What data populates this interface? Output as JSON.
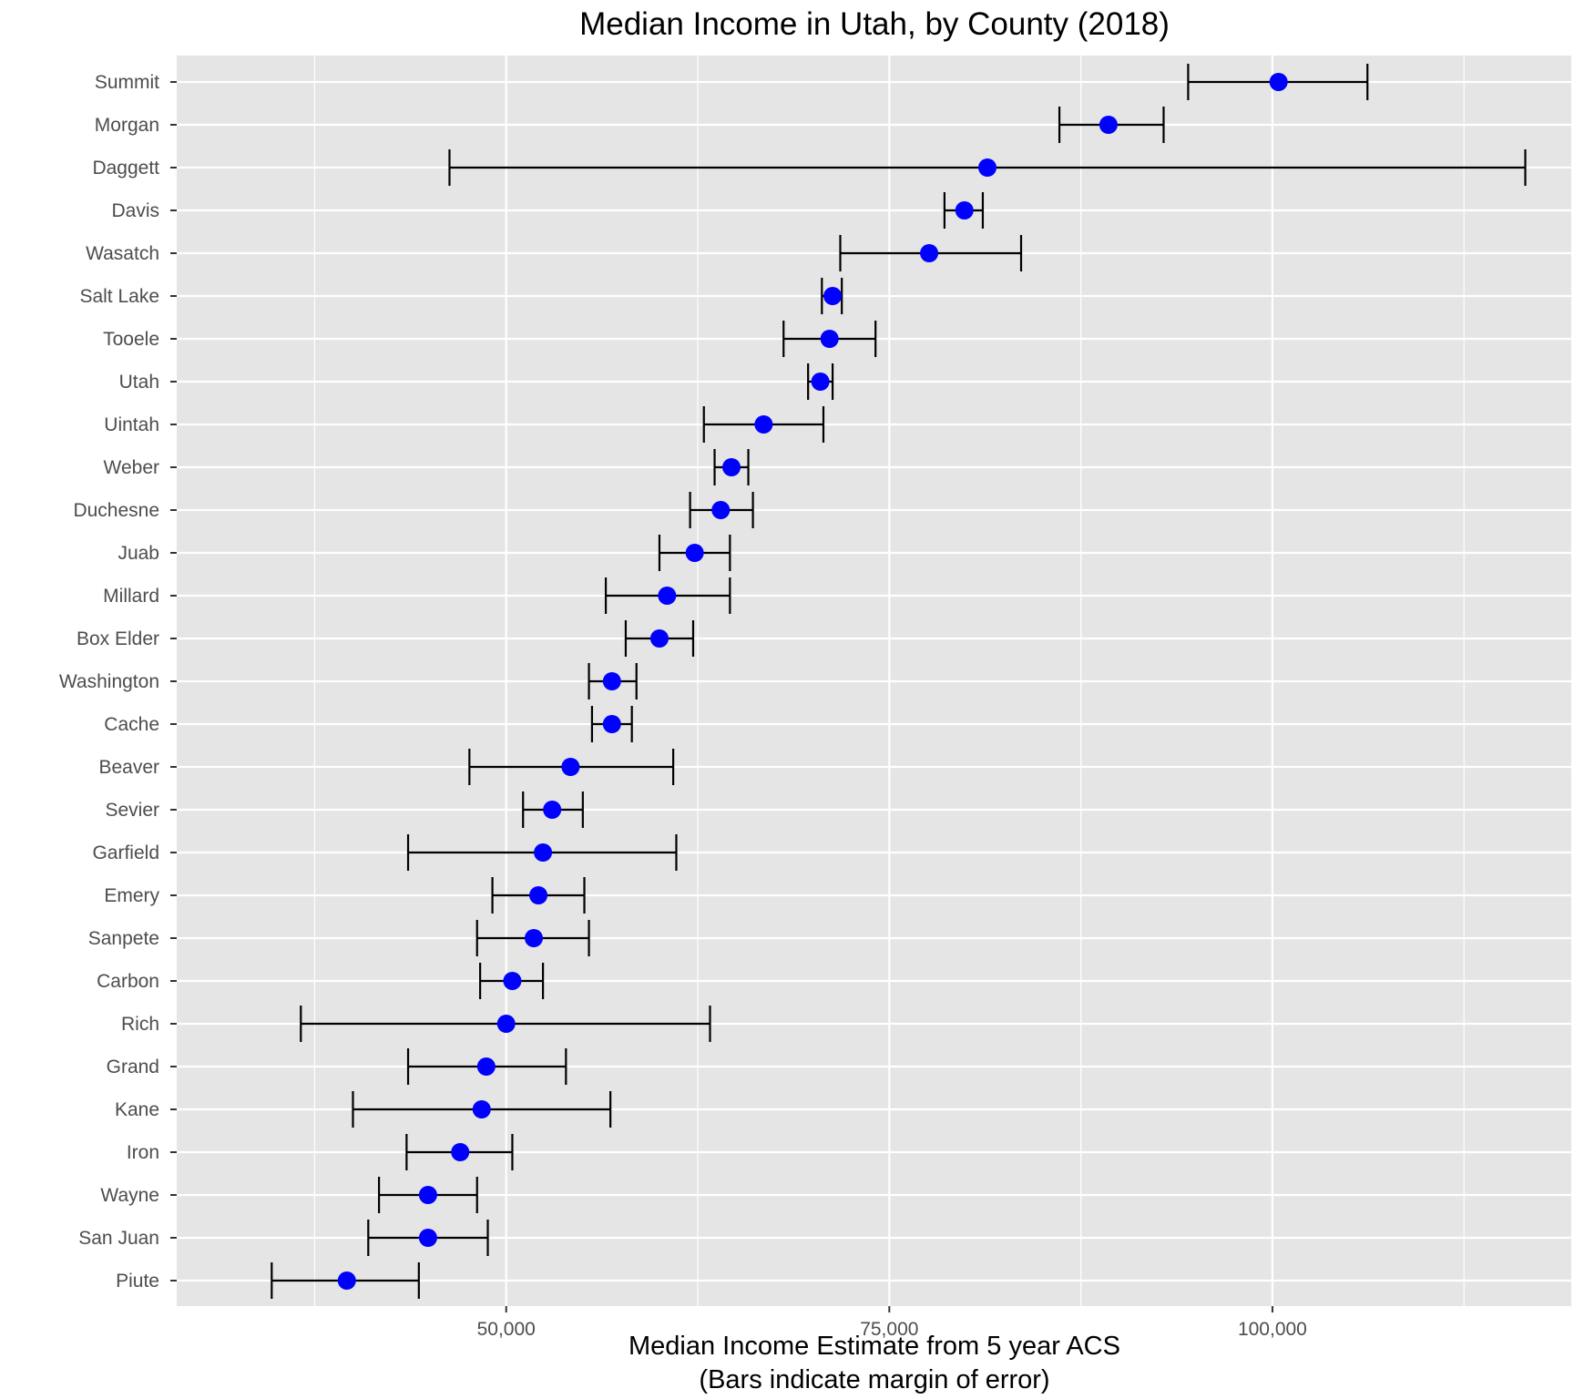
{
  "colors": {
    "panel_background": "#e5e5e5",
    "grid_line": "#ffffff",
    "point": "#0000ff",
    "errorbar": "#000000",
    "tick_text": "#4d4d4d",
    "title_text": "#000000"
  },
  "chart_data": {
    "type": "scatter",
    "title": "Median Income in Utah, by County (2018)",
    "xlabel": "Median Income Estimate from 5 year ACS",
    "xlabel_line2": "(Bars indicate margin of error)",
    "ylabel": "",
    "xlim": [
      28500,
      119500
    ],
    "x_ticks": [
      50000,
      75000,
      100000
    ],
    "x_tick_labels": [
      "50,000",
      "75,000",
      "100,000"
    ],
    "x_minor_ticks": [
      37500,
      62500,
      87500,
      112500
    ],
    "grid": true,
    "point_style": "filled circle",
    "errorbar_style": "horizontal with vertical caps",
    "categories": [
      "Summit",
      "Morgan",
      "Daggett",
      "Davis",
      "Wasatch",
      "Salt Lake",
      "Tooele",
      "Utah",
      "Uintah",
      "Weber",
      "Duchesne",
      "Juab",
      "Millard",
      "Box Elder",
      "Washington",
      "Cache",
      "Beaver",
      "Sevier",
      "Garfield",
      "Emery",
      "Sanpete",
      "Carbon",
      "Rich",
      "Grand",
      "Kane",
      "Iron",
      "Wayne",
      "San Juan",
      "Piute"
    ],
    "points": [
      {
        "county": "Summit",
        "estimate": 100400,
        "low": 94500,
        "high": 106200
      },
      {
        "county": "Morgan",
        "estimate": 89300,
        "low": 86100,
        "high": 92900
      },
      {
        "county": "Daggett",
        "estimate": 81400,
        "low": 46300,
        "high": 116500
      },
      {
        "county": "Davis",
        "estimate": 79900,
        "low": 78600,
        "high": 81100
      },
      {
        "county": "Wasatch",
        "estimate": 77600,
        "low": 71800,
        "high": 83600
      },
      {
        "county": "Salt Lake",
        "estimate": 71300,
        "low": 70600,
        "high": 71900
      },
      {
        "county": "Tooele",
        "estimate": 71100,
        "low": 68100,
        "high": 74100
      },
      {
        "county": "Utah",
        "estimate": 70500,
        "low": 69700,
        "high": 71300
      },
      {
        "county": "Uintah",
        "estimate": 66800,
        "low": 62900,
        "high": 70700
      },
      {
        "county": "Weber",
        "estimate": 64700,
        "low": 63600,
        "high": 65800
      },
      {
        "county": "Duchesne",
        "estimate": 64000,
        "low": 62000,
        "high": 66100
      },
      {
        "county": "Juab",
        "estimate": 62300,
        "low": 60000,
        "high": 64600
      },
      {
        "county": "Millard",
        "estimate": 60500,
        "low": 56500,
        "high": 64600
      },
      {
        "county": "Box Elder",
        "estimate": 60000,
        "low": 57800,
        "high": 62200
      },
      {
        "county": "Washington",
        "estimate": 56900,
        "low": 55400,
        "high": 58500
      },
      {
        "county": "Cache",
        "estimate": 56900,
        "low": 55600,
        "high": 58200
      },
      {
        "county": "Beaver",
        "estimate": 54200,
        "low": 47600,
        "high": 60900
      },
      {
        "county": "Sevier",
        "estimate": 53000,
        "low": 51100,
        "high": 55000
      },
      {
        "county": "Garfield",
        "estimate": 52400,
        "low": 43600,
        "high": 61100
      },
      {
        "county": "Emery",
        "estimate": 52100,
        "low": 49100,
        "high": 55100
      },
      {
        "county": "Sanpete",
        "estimate": 51800,
        "low": 48100,
        "high": 55400
      },
      {
        "county": "Carbon",
        "estimate": 50400,
        "low": 48300,
        "high": 52400
      },
      {
        "county": "Rich",
        "estimate": 50000,
        "low": 36600,
        "high": 63300
      },
      {
        "county": "Grand",
        "estimate": 48700,
        "low": 43600,
        "high": 53900
      },
      {
        "county": "Kane",
        "estimate": 48400,
        "low": 40000,
        "high": 56800
      },
      {
        "county": "Iron",
        "estimate": 47000,
        "low": 43500,
        "high": 50400
      },
      {
        "county": "Wayne",
        "estimate": 44900,
        "low": 41700,
        "high": 48100
      },
      {
        "county": "San Juan",
        "estimate": 44900,
        "low": 41000,
        "high": 48800
      },
      {
        "county": "Piute",
        "estimate": 39600,
        "low": 34700,
        "high": 44300
      }
    ]
  }
}
